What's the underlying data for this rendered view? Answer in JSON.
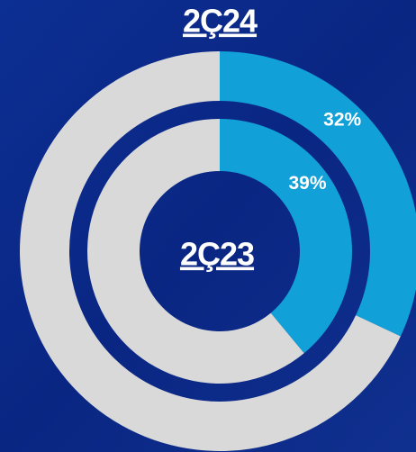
{
  "chart_data": [
    {
      "type": "donut",
      "title": "2Ç24",
      "values": [
        32,
        68
      ],
      "value_labels": [
        "32%",
        null
      ],
      "colors": [
        "#12a0d8",
        "#d9d9d9"
      ]
    },
    {
      "type": "donut",
      "title": "2Ç23",
      "values": [
        39,
        61
      ],
      "value_labels": [
        "39%",
        null
      ],
      "colors": [
        "#12a0d8",
        "#d9d9d9"
      ]
    }
  ]
}
